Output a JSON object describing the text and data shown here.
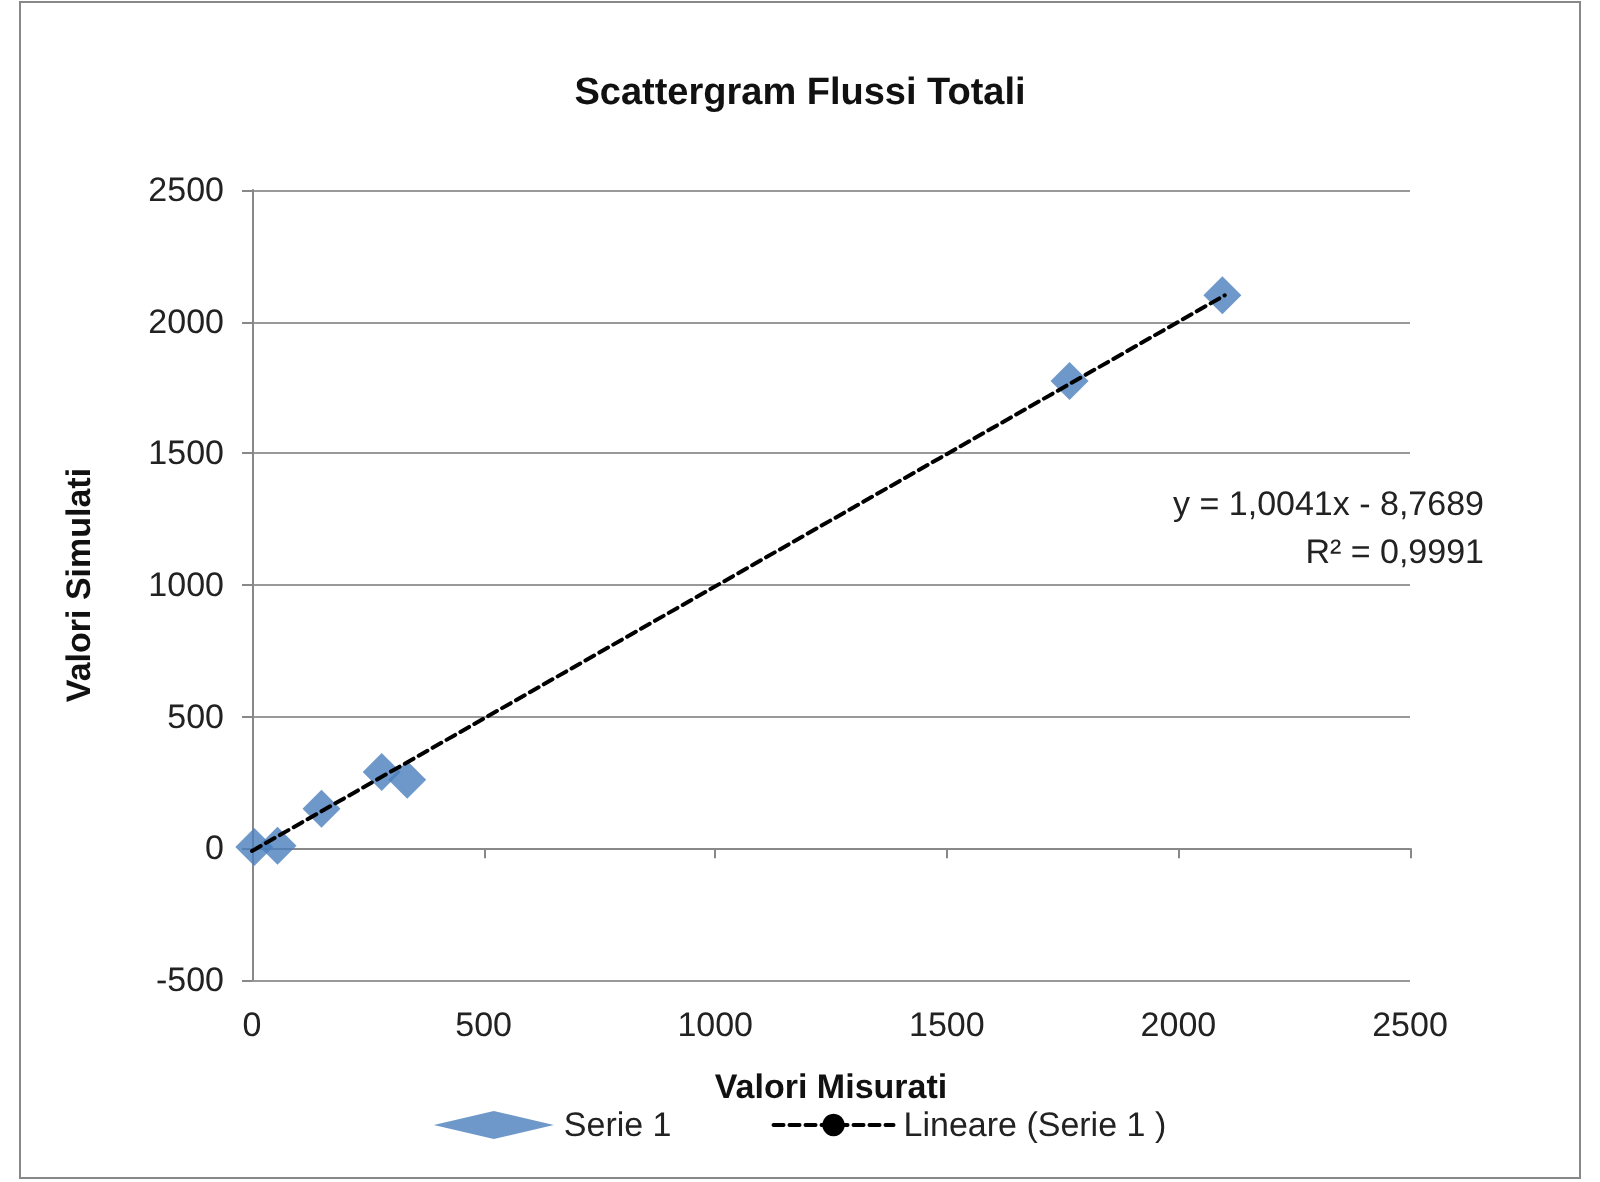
{
  "chart_data": {
    "type": "scatter",
    "title": "Scattergram Flussi Totali",
    "xlabel": "Valori Misurati",
    "ylabel": "Valori Simulati",
    "xlim": [
      0,
      2500
    ],
    "xticks": [
      0,
      500,
      1000,
      1500,
      2000,
      2500
    ],
    "ylim": [
      -500,
      2500
    ],
    "yticks": [
      -500,
      0,
      500,
      1000,
      1500,
      2000,
      2500
    ],
    "grid": "y",
    "legend": "bottom",
    "marker": "diamond",
    "series": [
      {
        "name": "Serie 1",
        "color": "#4a7ebb",
        "x": [
          5,
          55,
          150,
          280,
          335,
          1765,
          2095
        ],
        "values": [
          5,
          10,
          150,
          290,
          260,
          1775,
          2100
        ]
      },
      {
        "name": "Lineare (Serie 1 )",
        "type": "line",
        "line_style": "dashed",
        "marker": "none",
        "color": "#000000",
        "x": [
          0,
          2100
        ],
        "values": [
          -10,
          2100
        ]
      }
    ],
    "annotations": [
      "y = 1,0041x - 8,7689\nR² = 0,9991"
    ]
  }
}
